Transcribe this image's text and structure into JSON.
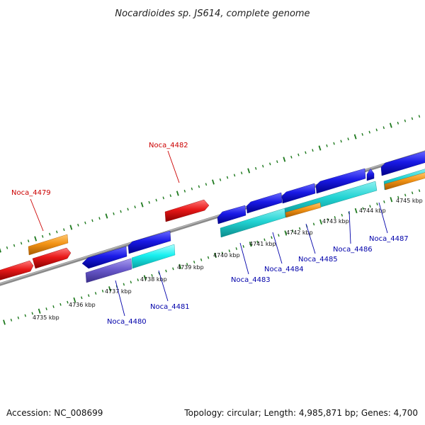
{
  "title": "Nocardioides sp. JS614, complete genome",
  "accession": "Accession: NC_008699",
  "summary": "Topology: circular; Length: 4,985,871 bp; Genes: 4,700",
  "colors": {
    "backbone": "#8a8a8a",
    "tick": "#1f7a1f",
    "label_forward": "#cc0000",
    "label_reverse": "#0000aa",
    "red": "#e81818",
    "orange": "#f39416",
    "blue": "#1a1ae6",
    "cyan": "#22d3d3",
    "bright_cyan": "#18f0f0",
    "purple": "#6a5acd"
  },
  "kbp_labels": [
    "4735 kbp",
    "4736 kbp",
    "4737 kbp",
    "4738 kbp",
    "4739 kbp",
    "4740 kbp",
    "4741 kbp",
    "4742 kbp",
    "4743 kbp",
    "4744 kbp",
    "4745 kbp"
  ],
  "gene_labels": [
    "Noca_4479",
    "Noca_4480",
    "Noca_4481",
    "Noca_4482",
    "Noca_4483",
    "Noca_4484",
    "Noca_4485",
    "Noca_4486",
    "Noca_4487"
  ]
}
